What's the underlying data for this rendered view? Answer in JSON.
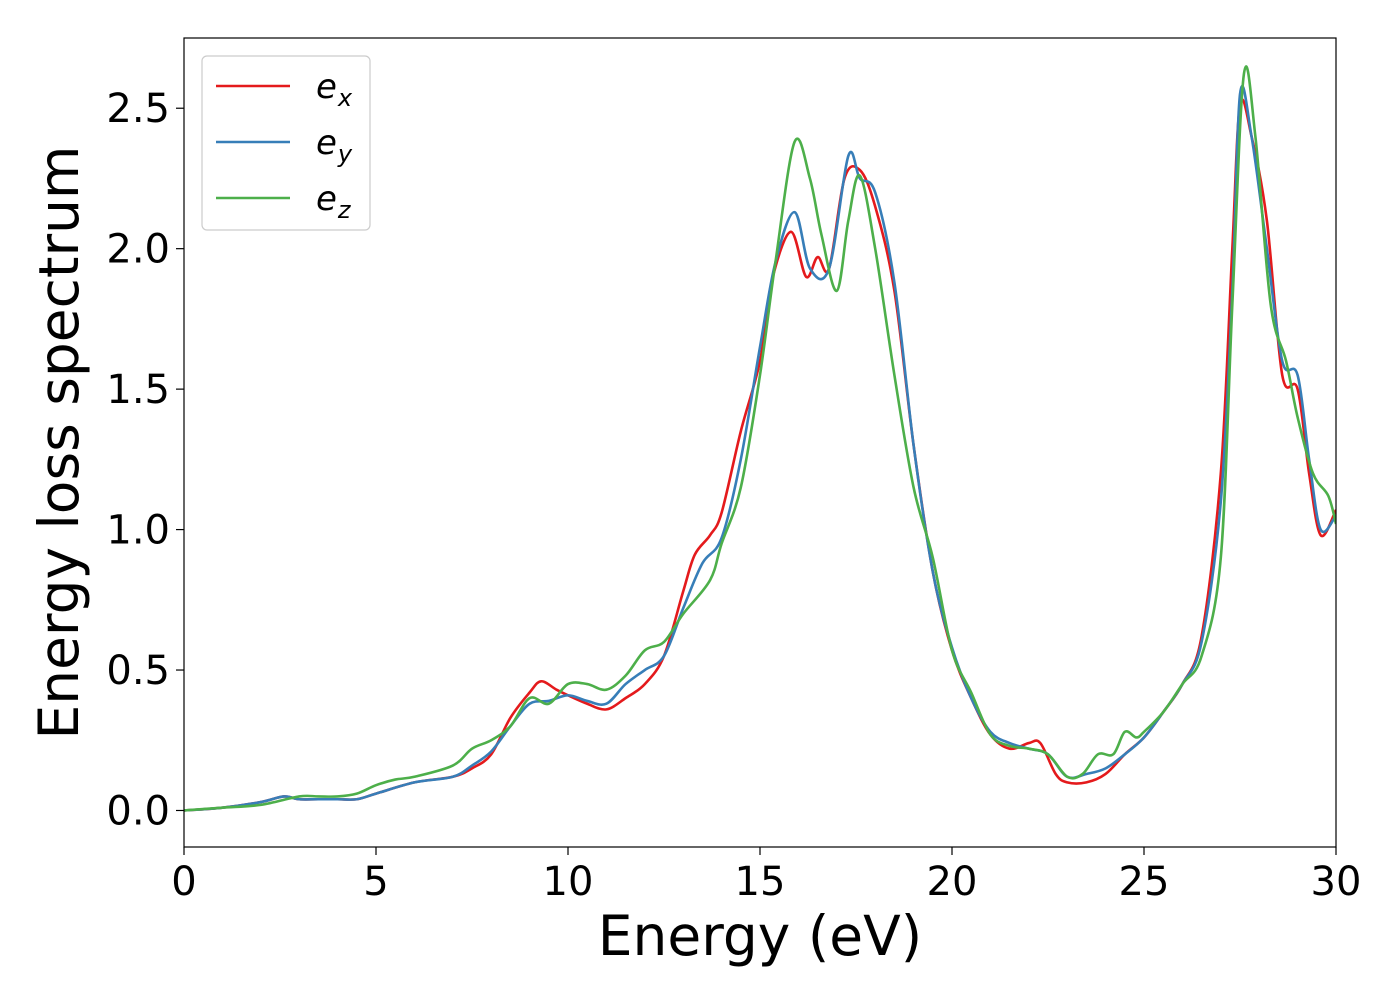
{
  "chart_data": {
    "type": "line",
    "title": "",
    "xlabel": "Energy (eV)",
    "ylabel": "Energy loss spectrum",
    "xlim": [
      0,
      30
    ],
    "ylim": [
      -0.13,
      2.75
    ],
    "xticks": [
      0,
      5,
      10,
      15,
      20,
      25,
      30
    ],
    "xtick_labels": [
      "0",
      "5",
      "10",
      "15",
      "20",
      "25",
      "30"
    ],
    "yticks": [
      0.0,
      0.5,
      1.0,
      1.5,
      2.0,
      2.5
    ],
    "ytick_labels": [
      "0.0",
      "0.5",
      "1.0",
      "1.5",
      "2.0",
      "2.5"
    ],
    "grid": false,
    "legend_position": "top-left",
    "series": [
      {
        "name": "e_x",
        "label_base": "e",
        "label_sub": "x",
        "color": "#e41a1c",
        "x": [
          0,
          1,
          2,
          2.6,
          3,
          3.5,
          4,
          4.5,
          5,
          6,
          7,
          7.5,
          8,
          8.5,
          9,
          9.3,
          9.7,
          10,
          10.5,
          11,
          11.5,
          12,
          12.5,
          13,
          13.3,
          13.7,
          14,
          14.5,
          15,
          15.3,
          15.8,
          16.2,
          16.5,
          16.8,
          17.2,
          17.6,
          18,
          18.5,
          19,
          19.5,
          20,
          20.5,
          21,
          21.5,
          22,
          22.3,
          22.7,
          23,
          23.5,
          24,
          24.5,
          25,
          25.5,
          26,
          26.5,
          27,
          27.3,
          27.5,
          27.8,
          28.2,
          28.6,
          29,
          29.3,
          29.6,
          30
        ],
        "y": [
          0.0,
          0.01,
          0.03,
          0.05,
          0.04,
          0.04,
          0.04,
          0.04,
          0.06,
          0.1,
          0.12,
          0.15,
          0.2,
          0.33,
          0.42,
          0.46,
          0.43,
          0.41,
          0.38,
          0.36,
          0.4,
          0.45,
          0.55,
          0.78,
          0.91,
          0.98,
          1.06,
          1.35,
          1.6,
          1.88,
          2.06,
          1.9,
          1.97,
          1.93,
          2.25,
          2.28,
          2.15,
          1.85,
          1.3,
          0.85,
          0.57,
          0.4,
          0.27,
          0.22,
          0.24,
          0.24,
          0.13,
          0.1,
          0.1,
          0.13,
          0.2,
          0.26,
          0.35,
          0.45,
          0.62,
          1.2,
          2.0,
          2.51,
          2.4,
          2.1,
          1.55,
          1.5,
          1.2,
          0.98,
          1.07
        ]
      },
      {
        "name": "e_y",
        "label_base": "e",
        "label_sub": "y",
        "color": "#377eb8",
        "x": [
          0,
          1,
          2,
          2.6,
          3,
          3.5,
          4,
          4.5,
          5,
          6,
          7,
          7.5,
          8,
          8.5,
          9,
          9.5,
          10,
          10.5,
          11,
          11.5,
          12,
          12.5,
          13,
          13.5,
          14,
          14.5,
          15,
          15.4,
          15.9,
          16.3,
          16.8,
          17.3,
          17.6,
          18,
          18.5,
          19,
          19.5,
          20,
          20.5,
          21,
          21.5,
          22,
          22.5,
          23,
          23.5,
          24,
          24.5,
          25,
          25.5,
          26,
          26.5,
          27,
          27.3,
          27.5,
          27.8,
          28.2,
          28.6,
          29,
          29.3,
          29.6,
          30
        ],
        "y": [
          0.0,
          0.01,
          0.03,
          0.05,
          0.04,
          0.04,
          0.04,
          0.04,
          0.06,
          0.1,
          0.12,
          0.16,
          0.21,
          0.3,
          0.38,
          0.39,
          0.41,
          0.39,
          0.38,
          0.45,
          0.5,
          0.55,
          0.72,
          0.88,
          0.97,
          1.25,
          1.65,
          1.95,
          2.13,
          1.93,
          1.93,
          2.33,
          2.25,
          2.2,
          1.88,
          1.3,
          0.85,
          0.58,
          0.4,
          0.28,
          0.24,
          0.22,
          0.2,
          0.12,
          0.13,
          0.15,
          0.2,
          0.26,
          0.35,
          0.45,
          0.6,
          1.1,
          1.85,
          2.55,
          2.4,
          2.0,
          1.6,
          1.55,
          1.25,
          1.0,
          1.05
        ]
      },
      {
        "name": "e_z",
        "label_base": "e",
        "label_sub": "z",
        "color": "#4daf4a",
        "x": [
          0,
          1,
          2,
          3,
          3.5,
          4,
          4.5,
          5,
          5.5,
          6,
          7,
          7.5,
          8,
          8.5,
          9,
          9.5,
          10,
          10.5,
          11,
          11.5,
          12,
          12.5,
          13,
          13.7,
          14,
          14.5,
          15,
          15.4,
          15.9,
          16.3,
          16.6,
          17,
          17.3,
          17.6,
          18,
          18.5,
          19,
          19.5,
          20,
          20.5,
          21,
          21.5,
          22,
          22.5,
          23,
          23.4,
          23.8,
          24.2,
          24.5,
          24.8,
          25,
          25.5,
          26,
          26.5,
          27,
          27.3,
          27.6,
          27.9,
          28.3,
          28.7,
          29,
          29.4,
          29.8,
          30
        ],
        "y": [
          0.0,
          0.01,
          0.02,
          0.05,
          0.05,
          0.05,
          0.06,
          0.09,
          0.11,
          0.12,
          0.16,
          0.22,
          0.25,
          0.3,
          0.4,
          0.38,
          0.45,
          0.45,
          0.43,
          0.48,
          0.57,
          0.6,
          0.7,
          0.82,
          0.95,
          1.15,
          1.55,
          1.95,
          2.38,
          2.25,
          2.05,
          1.85,
          2.1,
          2.26,
          2.0,
          1.55,
          1.15,
          0.9,
          0.57,
          0.42,
          0.27,
          0.23,
          0.22,
          0.2,
          0.12,
          0.13,
          0.2,
          0.2,
          0.28,
          0.26,
          0.28,
          0.35,
          0.45,
          0.55,
          0.9,
          1.8,
          2.62,
          2.4,
          1.8,
          1.6,
          1.4,
          1.2,
          1.12,
          1.02
        ]
      }
    ]
  }
}
